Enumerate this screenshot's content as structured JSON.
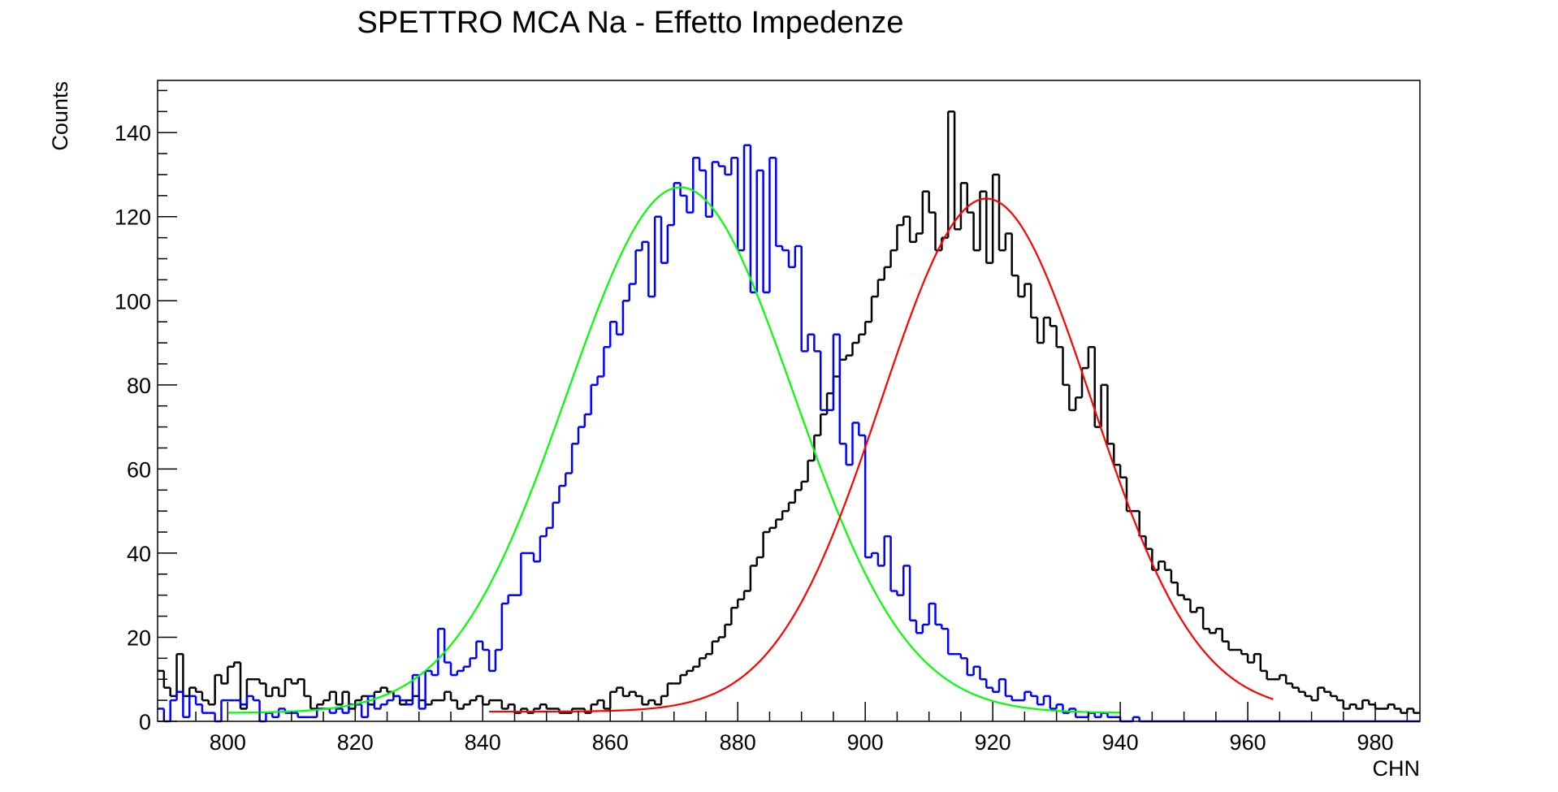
{
  "chart_data": {
    "type": "histogram",
    "title": "SPETTRO MCA Na - Effetto Impedenze",
    "xlabel": "CHN",
    "ylabel": "Counts",
    "xlim": [
      789,
      987
    ],
    "ylim": [
      0,
      152.4
    ],
    "bin_width": 1,
    "x_ticks": [
      800,
      820,
      840,
      860,
      880,
      900,
      920,
      940,
      960,
      980
    ],
    "y_ticks": [
      0,
      20,
      40,
      60,
      80,
      100,
      120,
      140
    ],
    "grid": false,
    "legend": "none",
    "x_start": 789,
    "series": [
      {
        "kind": "histogram",
        "color": "#0000ff",
        "values": [
          3,
          0,
          5,
          7,
          1,
          6,
          4,
          2,
          2,
          0,
          5,
          5,
          5,
          4,
          6,
          5,
          0,
          2,
          1,
          3,
          2,
          2,
          1,
          1,
          1,
          3,
          3,
          2,
          3,
          2,
          4,
          4,
          1,
          6,
          3,
          4,
          5,
          6,
          5,
          4,
          11,
          3,
          12,
          11,
          22,
          14,
          11,
          12,
          13,
          15,
          19,
          17,
          12,
          17,
          28,
          30,
          30,
          40,
          40,
          38,
          44,
          46,
          52,
          56,
          59,
          66,
          70,
          73,
          80,
          82,
          89,
          95,
          92,
          100,
          104,
          112,
          114,
          101,
          120,
          109,
          118,
          128,
          125,
          121,
          134,
          131,
          120,
          133,
          132,
          130,
          134,
          112,
          137,
          102,
          131,
          102,
          134,
          113,
          112,
          108,
          113,
          88,
          92,
          88,
          74,
          74,
          92,
          66,
          61,
          71,
          68,
          39,
          40,
          37,
          44,
          31,
          30,
          37,
          24,
          21,
          23,
          28,
          23,
          22,
          16,
          16,
          15,
          11,
          13,
          10,
          8,
          7,
          10,
          6,
          5,
          5,
          7,
          6,
          4,
          6,
          3,
          4,
          2,
          3,
          1,
          1,
          2,
          1,
          2,
          1,
          1,
          0,
          0,
          1,
          0,
          0,
          0,
          0,
          0,
          0,
          0,
          0,
          0,
          0,
          0,
          0,
          0,
          0,
          0,
          0,
          0,
          0,
          0,
          0,
          0,
          0,
          0,
          0,
          0,
          0,
          0,
          0,
          0,
          0,
          0,
          0,
          0,
          0,
          0,
          0,
          0,
          0,
          0,
          0,
          0,
          0,
          0,
          0
        ]
      },
      {
        "kind": "histogram",
        "color": "#000000",
        "values": [
          12,
          8,
          6,
          16,
          6,
          8,
          7,
          5,
          4,
          11,
          9,
          13,
          14,
          3,
          10,
          10,
          9,
          6,
          8,
          6,
          10,
          9,
          10,
          6,
          3,
          4,
          5,
          7,
          4,
          7,
          3,
          5,
          6,
          4,
          7,
          8,
          7,
          6,
          4,
          5,
          6,
          5,
          4,
          5,
          5,
          7,
          5,
          3,
          4,
          5,
          6,
          4,
          5,
          5,
          3,
          4,
          2,
          3,
          2,
          3,
          4,
          3,
          3,
          2,
          2,
          3,
          3,
          2,
          4,
          5,
          3,
          7,
          8,
          6,
          7,
          6,
          4,
          5,
          4,
          6,
          9,
          9,
          11,
          12,
          13,
          15,
          16,
          19,
          20,
          23,
          27,
          29,
          31,
          37,
          39,
          45,
          46,
          48,
          50,
          52,
          55,
          57,
          62,
          68,
          73,
          78,
          82,
          86,
          87,
          90,
          92,
          95,
          101,
          105,
          108,
          112,
          118,
          120,
          114,
          116,
          126,
          121,
          112,
          115,
          145,
          117,
          128,
          121,
          112,
          126,
          109,
          130,
          112,
          116,
          106,
          101,
          104,
          96,
          90,
          96,
          94,
          89,
          80,
          74,
          77,
          84,
          89,
          70,
          80,
          66,
          61,
          58,
          50,
          50,
          44,
          41,
          36,
          38,
          36,
          33,
          30,
          29,
          26,
          27,
          22,
          21,
          22,
          19,
          17,
          17,
          16,
          14,
          16,
          12,
          10,
          10,
          11,
          9,
          8,
          7,
          6,
          5,
          8,
          7,
          6,
          5,
          3,
          4,
          3,
          5,
          4,
          3,
          3,
          4,
          3,
          2,
          3,
          2,
          2
        ]
      },
      {
        "kind": "fit",
        "color": "#00ff00",
        "model": "gaussian + background",
        "amplitude": 125,
        "mean": 871,
        "sigma": 17.8,
        "background": 2,
        "range": [
          800,
          940
        ]
      },
      {
        "kind": "fit",
        "color": "#ff0000",
        "model": "gaussian + background",
        "amplitude": 122,
        "mean": 919,
        "sigma": 16.5,
        "background": 2.3,
        "range": [
          841,
          964
        ]
      }
    ]
  }
}
